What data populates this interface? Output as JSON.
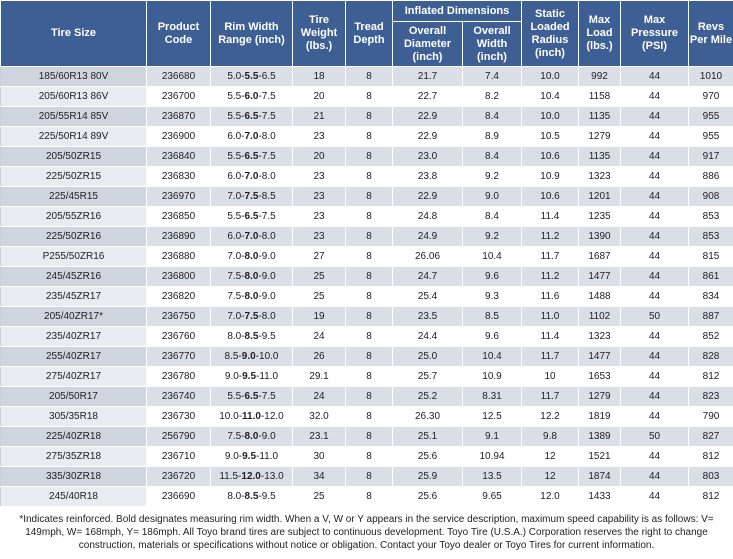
{
  "header": {
    "group": "Inflated Dimensions",
    "columns": [
      "Tire Size",
      "Product Code",
      "Rim Width Range (inch)",
      "Tire Weight (lbs.)",
      "Tread Depth",
      "Overall Diameter (inch)",
      "Overall Width (inch)",
      "Static Loaded Radius (inch)",
      "Max Load (lbs.)",
      "Max Pressure (PSI)",
      "Revs Per Mile"
    ]
  },
  "table": {
    "rows": [
      [
        "185/60R13 80V",
        "236680",
        [
          "5.0-",
          "5.5",
          "-6.5"
        ],
        "18",
        "8",
        "21.7",
        "7.4",
        "10.0",
        "992",
        "44",
        "1010"
      ],
      [
        "205/60R13 86V",
        "236700",
        [
          "5.5-",
          "6.0",
          "-7.5"
        ],
        "20",
        "8",
        "22.7",
        "8.2",
        "10.4",
        "1158",
        "44",
        "970"
      ],
      [
        "205/55R14 85V",
        "236870",
        [
          "5.5-",
          "6.5",
          "-7.5"
        ],
        "21",
        "8",
        "22.9",
        "8.4",
        "10.0",
        "1135",
        "44",
        "955"
      ],
      [
        "225/50R14 89V",
        "236900",
        [
          "6.0-",
          "7.0",
          "-8.0"
        ],
        "23",
        "8",
        "22.9",
        "8.9",
        "10.5",
        "1279",
        "44",
        "955"
      ],
      [
        "205/50ZR15",
        "236840",
        [
          "5.5-",
          "6.5",
          "-7.5"
        ],
        "20",
        "8",
        "23.0",
        "8.4",
        "10.6",
        "1135",
        "44",
        "917"
      ],
      [
        "225/50ZR15",
        "236830",
        [
          "6.0-",
          "7.0",
          "-8.0"
        ],
        "23",
        "8",
        "23.8",
        "9.2",
        "10.9",
        "1323",
        "44",
        "886"
      ],
      [
        "225/45R15",
        "236970",
        [
          "7.0-",
          "7.5",
          "-8.5"
        ],
        "23",
        "8",
        "22.9",
        "9.0",
        "10.6",
        "1201",
        "44",
        "908"
      ],
      [
        "205/55ZR16",
        "236850",
        [
          "5.5-",
          "6.5",
          "-7.5"
        ],
        "23",
        "8",
        "24.8",
        "8.4",
        "11.4",
        "1235",
        "44",
        "853"
      ],
      [
        "225/50ZR16",
        "236890",
        [
          "6.0-",
          "7.0",
          "-8.0"
        ],
        "23",
        "8",
        "24.9",
        "9.2",
        "11.2",
        "1390",
        "44",
        "853"
      ],
      [
        "P255/50ZR16",
        "236880",
        [
          "7.0-",
          "8.0",
          "-9.0"
        ],
        "27",
        "8",
        "26.06",
        "10.4",
        "11.7",
        "1687",
        "44",
        "815"
      ],
      [
        "245/45ZR16",
        "236800",
        [
          "7.5-",
          "8.0",
          "-9.0"
        ],
        "25",
        "8",
        "24.7",
        "9.6",
        "11.2",
        "1477",
        "44",
        "861"
      ],
      [
        "235/45ZR17",
        "236820",
        [
          "7.5-",
          "8.0",
          "-9.0"
        ],
        "25",
        "8",
        "25.4",
        "9.3",
        "11.6",
        "1488",
        "44",
        "834"
      ],
      [
        "205/40ZR17*",
        "236750",
        [
          "7.0-",
          "7.5",
          "-8.0"
        ],
        "19",
        "8",
        "23.5",
        "8.5",
        "11.0",
        "1102",
        "50",
        "887"
      ],
      [
        "235/40ZR17",
        "236760",
        [
          "8.0-",
          "8.5",
          "-9.5"
        ],
        "24",
        "8",
        "24.4",
        "9.6",
        "11.4",
        "1323",
        "44",
        "852"
      ],
      [
        "255/40ZR17",
        "236770",
        [
          "8.5-",
          "9.0",
          "-10.0"
        ],
        "26",
        "8",
        "25.0",
        "10.4",
        "11.7",
        "1477",
        "44",
        "828"
      ],
      [
        "275/40ZR17",
        "236780",
        [
          "9.0-",
          "9.5",
          "-11.0"
        ],
        "29.1",
        "8",
        "25.7",
        "10.9",
        "10",
        "1653",
        "44",
        "812"
      ],
      [
        "205/50R17",
        "236740",
        [
          "5.5-",
          "6.5",
          "-7.5"
        ],
        "24",
        "8",
        "25.2",
        "8.31",
        "11.7",
        "1279",
        "44",
        "823"
      ],
      [
        "305/35R18",
        "236730",
        [
          "10.0-",
          "11.0",
          "-12.0"
        ],
        "32.0",
        "8",
        "26.30",
        "12.5",
        "12.2",
        "1819",
        "44",
        "790"
      ],
      [
        "225/40ZR18",
        "256790",
        [
          "7.5-",
          "8.0",
          "-9.0"
        ],
        "23.1",
        "8",
        "25.1",
        "9.1",
        "9.8",
        "1389",
        "50",
        "827"
      ],
      [
        "275/35ZR18",
        "236710",
        [
          "9.0-",
          "9.5",
          "-11.0"
        ],
        "30",
        "8",
        "25.6",
        "10.94",
        "12",
        "1521",
        "44",
        "812"
      ],
      [
        "335/30ZR18",
        "236720",
        [
          "11.5-",
          "12.0",
          "-13.0"
        ],
        "34",
        "8",
        "25.9",
        "13.5",
        "12",
        "1874",
        "44",
        "803"
      ],
      [
        "245/40R18",
        "236690",
        [
          "8.0-",
          "8.5",
          "-9.5"
        ],
        "25",
        "8",
        "25.6",
        "9.65",
        "12.0",
        "1433",
        "44",
        "812"
      ]
    ]
  },
  "footer": {
    "note": "*Indicates reinforced. Bold designates measuring rim width. When a V, W or Y appears in the service description, maximum speed capability is as follows: V= 149mph, W= 168mph, Y= 186mph. All Toyo brand tires are subject to continuous development. Toyo Tire (U.S.A.) Corporation reserves the right to change construction, materials or specifications without notice or obligation. Contact your Toyo dealer or Toyo Tires for current information."
  }
}
